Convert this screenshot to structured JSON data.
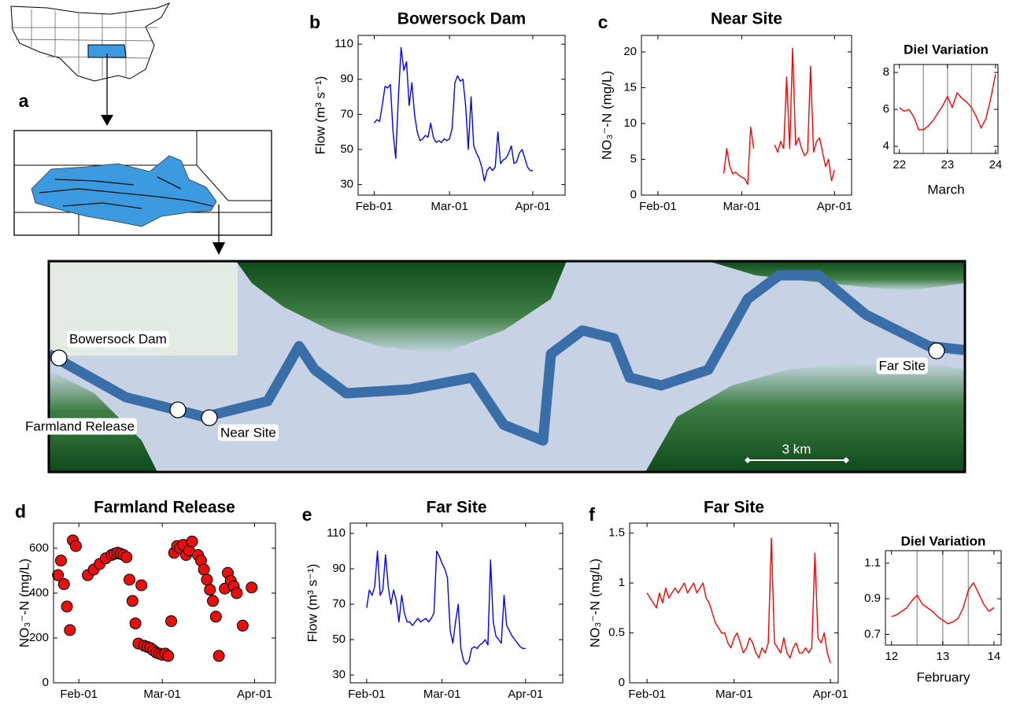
{
  "panel_labels": [
    "a",
    "b",
    "c",
    "d",
    "e",
    "f"
  ],
  "map": {
    "sites": [
      {
        "label": "Bowersock Dam"
      },
      {
        "label": "Farmland Release"
      },
      {
        "label": "Near Site"
      },
      {
        "label": "Far Site"
      }
    ],
    "scale_label": "3 km"
  },
  "chart_data": [
    {
      "type": "line",
      "title": "Bowersock Dam",
      "ylabel": "Flow (m³ s⁻¹)",
      "color": "#0000ff",
      "xlim": [
        -6,
        71
      ],
      "ylim": [
        24,
        115
      ],
      "xticks": [
        {
          "value": 0,
          "label": "Feb-01"
        },
        {
          "value": 28,
          "label": "Mar-01"
        },
        {
          "value": 59,
          "label": "Apr-01"
        }
      ],
      "yticks": [
        30,
        50,
        70,
        90,
        110
      ],
      "x": [
        0,
        1,
        2,
        3,
        4,
        5,
        6,
        7,
        8,
        9,
        10,
        11,
        12,
        13,
        14,
        15,
        16,
        17,
        18,
        19,
        20,
        21,
        22,
        23,
        24,
        25,
        26,
        27,
        28,
        29,
        30,
        31,
        32,
        33,
        34,
        35,
        36,
        37,
        38,
        39,
        40,
        41,
        42,
        43,
        44,
        45,
        46,
        47,
        48,
        49,
        50,
        51,
        52,
        53,
        54,
        55,
        56,
        57,
        58,
        59
      ],
      "values": [
        65,
        67,
        66,
        75,
        86,
        85,
        87,
        60,
        45,
        80,
        108,
        95,
        100,
        75,
        88,
        70,
        60,
        55,
        56,
        58,
        57,
        65,
        57,
        54,
        55,
        54,
        56,
        55,
        56,
        62,
        88,
        92,
        89,
        90,
        75,
        50,
        80,
        52,
        48,
        45,
        40,
        32,
        38,
        40,
        38,
        40,
        60,
        42,
        44,
        45,
        48,
        52,
        42,
        43,
        48,
        50,
        45,
        40,
        38,
        38
      ]
    },
    {
      "type": "line",
      "title": "Near Site",
      "ylabel": "NO₃⁻-N (mg/L)",
      "color": "#ff0000",
      "xlim": [
        -5.5,
        64.7
      ],
      "ylim": [
        0,
        22.3
      ],
      "xticks": [
        {
          "value": 0,
          "label": "Feb-01"
        },
        {
          "value": 28,
          "label": "Mar-01"
        },
        {
          "value": 59,
          "label": "Apr-01"
        }
      ],
      "yticks": [
        0,
        5,
        10,
        15,
        20
      ],
      "x": [
        22,
        23,
        24,
        25,
        26,
        27,
        28,
        29,
        30,
        31,
        32,
        35,
        39,
        40,
        41,
        42,
        43,
        44,
        45,
        46,
        47,
        48,
        49,
        50,
        51,
        52,
        53,
        54,
        55,
        56,
        57,
        58,
        59
      ],
      "values": [
        3,
        6.5,
        4,
        3,
        3.2,
        2.8,
        2.5,
        2.3,
        1.5,
        9.5,
        6.5,
        null,
        7,
        6,
        7.5,
        6.5,
        16.5,
        6.5,
        20.5,
        7,
        8,
        6.5,
        5.5,
        6,
        18,
        6,
        7.5,
        8,
        6,
        4,
        5,
        2,
        3.5
      ]
    },
    {
      "type": "line",
      "title": "Diel Variation",
      "xlabel": "March",
      "color": "#ff0000",
      "xlim": [
        21.89,
        24.05
      ],
      "ylim": [
        3.62,
        8.43
      ],
      "xticks": [
        22,
        23,
        24
      ],
      "yticks": [
        4,
        6,
        8
      ],
      "vlines": [
        22.5,
        23,
        23.5
      ],
      "x": [
        22,
        22.1,
        22.2,
        22.3,
        22.4,
        22.5,
        22.6,
        22.7,
        22.8,
        22.9,
        23,
        23.1,
        23.2,
        23.3,
        23.4,
        23.5,
        23.6,
        23.7,
        23.8,
        23.9,
        24
      ],
      "values": [
        6.1,
        5.9,
        6.0,
        5.6,
        4.9,
        4.9,
        5.1,
        5.4,
        5.8,
        6.2,
        6.7,
        6.1,
        6.9,
        6.6,
        6.4,
        6.1,
        5.6,
        5.0,
        5.5,
        6.6,
        7.9
      ]
    },
    {
      "type": "scatter",
      "title": "Farmland Release",
      "ylabel": "NO₃⁻-N (mg/L)",
      "color": "#e8100f",
      "xlim": [
        -8.5,
        66
      ],
      "ylim": [
        0,
        712
      ],
      "xticks": [
        {
          "value": 0,
          "label": "Feb-01"
        },
        {
          "value": 28,
          "label": "Mar-01"
        },
        {
          "value": 59,
          "label": "Apr-01"
        }
      ],
      "yticks": [
        0,
        200,
        400,
        600
      ],
      "x": [
        -7,
        -6,
        -5,
        -4,
        -3,
        -2,
        -1,
        3,
        5,
        7,
        9,
        11,
        12,
        13,
        14,
        15,
        16,
        17,
        18,
        19,
        20,
        21,
        22,
        23,
        24,
        25,
        26,
        27,
        28,
        29,
        30,
        31,
        32,
        33,
        34,
        35,
        36,
        37,
        38,
        40,
        41,
        42,
        43,
        44,
        45,
        46,
        47,
        49,
        50,
        51,
        52,
        53,
        55,
        58
      ],
      "values": [
        480,
        545,
        440,
        340,
        235,
        635,
        610,
        480,
        505,
        530,
        555,
        570,
        575,
        580,
        575,
        570,
        560,
        460,
        365,
        265,
        175,
        435,
        165,
        160,
        155,
        145,
        135,
        130,
        125,
        130,
        120,
        275,
        580,
        610,
        600,
        615,
        570,
        590,
        630,
        570,
        545,
        505,
        460,
        415,
        365,
        295,
        120,
        420,
        490,
        455,
        430,
        400,
        255,
        425
      ]
    },
    {
      "type": "line",
      "title": "Far Site",
      "ylabel": "Flow (m³ s⁻¹)",
      "color": "#0000ff",
      "xlim": [
        -6.1,
        72.8
      ],
      "ylim": [
        25.6,
        115.8
      ],
      "xticks": [
        {
          "value": 0,
          "label": "Feb-01"
        },
        {
          "value": 28,
          "label": "Mar-01"
        },
        {
          "value": 59,
          "label": "Apr-01"
        }
      ],
      "yticks": [
        30,
        50,
        70,
        90,
        110
      ],
      "x": [
        0,
        1,
        2,
        3,
        4,
        5,
        6,
        7,
        8,
        9,
        10,
        11,
        12,
        13,
        14,
        15,
        16,
        17,
        18,
        19,
        20,
        21,
        22,
        23,
        24,
        25,
        26,
        27,
        28,
        29,
        30,
        31,
        32,
        33,
        34,
        35,
        36,
        37,
        38,
        39,
        40,
        41,
        42,
        43,
        44,
        45,
        46,
        47,
        48,
        49,
        50,
        51,
        52,
        53,
        54,
        55,
        56,
        57,
        58,
        59
      ],
      "values": [
        68,
        78,
        75,
        80,
        100,
        75,
        78,
        98,
        80,
        70,
        78,
        72,
        60,
        75,
        65,
        60,
        60,
        58,
        60,
        62,
        60,
        61,
        62,
        60,
        62,
        65,
        100,
        97,
        93,
        90,
        85,
        55,
        48,
        60,
        70,
        45,
        38,
        36,
        38,
        45,
        46,
        45,
        47,
        48,
        50,
        47,
        95,
        60,
        52,
        50,
        48,
        75,
        58,
        55,
        52,
        50,
        48,
        46,
        45,
        45
      ]
    },
    {
      "type": "line",
      "title": "Far Site",
      "ylabel": "NO₃⁻-N (mg/L)",
      "color": "#ff0000",
      "xlim": [
        -5.6,
        61.5
      ],
      "ylim": [
        0,
        1.6
      ],
      "xticks": [
        {
          "value": 0,
          "label": "Feb-01"
        },
        {
          "value": 28,
          "label": "Mar-01"
        },
        {
          "value": 59,
          "label": "Apr-01"
        }
      ],
      "yticks": [
        0,
        0.5,
        1,
        1.5
      ],
      "x": [
        0,
        1,
        2,
        3,
        4,
        5,
        6,
        7,
        8,
        9,
        10,
        11,
        12,
        13,
        14,
        15,
        16,
        17,
        18,
        19,
        20,
        21,
        22,
        23,
        24,
        25,
        26,
        27,
        28,
        29,
        30,
        31,
        32,
        33,
        34,
        35,
        36,
        37,
        38,
        39,
        40,
        41,
        42,
        43,
        44,
        45,
        46,
        47,
        48,
        49,
        50,
        51,
        52,
        53,
        54,
        55,
        56,
        57,
        58,
        59
      ],
      "values": [
        0.9,
        0.85,
        0.8,
        0.75,
        0.9,
        0.8,
        0.95,
        0.85,
        0.9,
        0.95,
        0.9,
        0.95,
        1.0,
        0.9,
        0.95,
        1.0,
        0.9,
        0.95,
        1.0,
        0.85,
        0.8,
        0.7,
        0.6,
        0.55,
        0.5,
        0.5,
        0.4,
        0.35,
        0.45,
        0.5,
        0.4,
        0.3,
        0.35,
        0.45,
        0.4,
        0.3,
        0.25,
        0.35,
        0.3,
        0.4,
        1.45,
        0.4,
        0.35,
        0.3,
        0.45,
        0.3,
        0.25,
        0.35,
        0.4,
        0.3,
        0.3,
        0.35,
        0.3,
        0.35,
        1.3,
        0.45,
        0.4,
        0.5,
        0.3,
        0.2
      ]
    },
    {
      "type": "line",
      "title": "Diel Variation",
      "xlabel": "February",
      "color": "#ff0000",
      "xlim": [
        11.88,
        14.14
      ],
      "ylim": [
        0.64,
        1.17
      ],
      "xticks": [
        12,
        13,
        14
      ],
      "yticks": [
        0.7,
        0.9,
        1.1
      ],
      "vlines": [
        12.5,
        13,
        13.5
      ],
      "x": [
        12,
        12.1,
        12.2,
        12.3,
        12.4,
        12.5,
        12.6,
        12.7,
        12.8,
        12.9,
        13,
        13.1,
        13.2,
        13.3,
        13.4,
        13.5,
        13.6,
        13.7,
        13.8,
        13.9,
        14
      ],
      "values": [
        0.8,
        0.81,
        0.83,
        0.85,
        0.89,
        0.92,
        0.87,
        0.85,
        0.83,
        0.8,
        0.78,
        0.76,
        0.77,
        0.79,
        0.85,
        0.95,
        0.99,
        0.93,
        0.87,
        0.83,
        0.85
      ]
    }
  ]
}
